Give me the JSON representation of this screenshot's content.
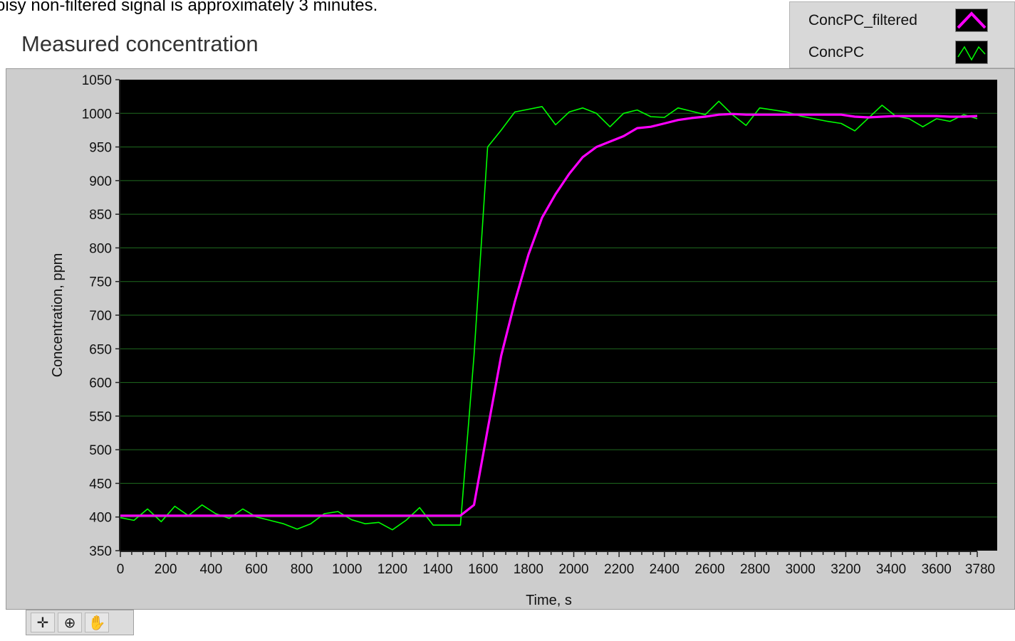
{
  "caption_text": "oisy non-filtered signal is approximately 3 minutes.",
  "toolbar": {
    "tools": [
      {
        "icon": "crosshair-icon",
        "glyph": "✛"
      },
      {
        "icon": "zoom-icon",
        "glyph": "⊕"
      },
      {
        "icon": "pan-hand-icon",
        "glyph": "✋"
      }
    ]
  },
  "colors": {
    "plot_background": "#000000",
    "grid": "#1f6b1f",
    "frame": "#cdcdcd",
    "ConcPC_filtered": "#ff00ff",
    "ConcPC": "#00ff00"
  },
  "chart_data": {
    "type": "line",
    "title": "Measured concentration",
    "xlabel": "Time, s",
    "ylabel": "Concentration, ppm",
    "xlim": [
      0,
      3780
    ],
    "ylim": [
      350,
      1050
    ],
    "x_ticks": [
      0,
      200,
      400,
      600,
      800,
      1000,
      1200,
      1400,
      1600,
      1800,
      2000,
      2200,
      2400,
      2600,
      2800,
      3000,
      3200,
      3400,
      3600,
      3780
    ],
    "y_ticks": [
      350,
      400,
      450,
      500,
      550,
      600,
      650,
      700,
      750,
      800,
      850,
      900,
      950,
      1000,
      1050
    ],
    "grid": true,
    "legend_position": "top-right",
    "series": [
      {
        "name": "ConcPC_filtered",
        "x": [
          0,
          300,
          600,
          900,
          1200,
          1500,
          1560,
          1620,
          1680,
          1740,
          1800,
          1860,
          1920,
          1980,
          2040,
          2100,
          2160,
          2220,
          2280,
          2340,
          2400,
          2460,
          2520,
          2580,
          2640,
          2700,
          2760,
          2820,
          2880,
          2940,
          3000,
          3060,
          3120,
          3180,
          3240,
          3300,
          3360,
          3420,
          3480,
          3540,
          3600,
          3660,
          3720,
          3780
        ],
        "y": [
          402,
          402,
          402,
          402,
          402,
          402,
          418,
          530,
          640,
          720,
          790,
          845,
          880,
          910,
          935,
          950,
          958,
          966,
          978,
          980,
          985,
          990,
          993,
          995,
          998,
          999,
          998,
          998,
          998,
          998,
          998,
          998,
          998,
          998,
          995,
          994,
          995,
          996,
          996,
          996,
          996,
          995,
          995,
          996
        ]
      },
      {
        "name": "ConcPC",
        "x": [
          0,
          60,
          120,
          180,
          240,
          300,
          360,
          420,
          480,
          540,
          600,
          660,
          720,
          780,
          840,
          900,
          960,
          1020,
          1080,
          1140,
          1200,
          1260,
          1320,
          1380,
          1440,
          1500,
          1560,
          1620,
          1680,
          1740,
          1800,
          1860,
          1920,
          1980,
          2040,
          2100,
          2160,
          2220,
          2280,
          2340,
          2400,
          2460,
          2520,
          2580,
          2640,
          2700,
          2760,
          2820,
          2880,
          2940,
          3000,
          3060,
          3120,
          3180,
          3240,
          3300,
          3360,
          3420,
          3480,
          3540,
          3600,
          3660,
          3720,
          3780
        ],
        "y": [
          399,
          395,
          412,
          393,
          416,
          402,
          418,
          405,
          398,
          412,
          400,
          395,
          390,
          382,
          390,
          405,
          408,
          396,
          390,
          392,
          381,
          395,
          414,
          388,
          388,
          388,
          640,
          950,
          975,
          1002,
          1006,
          1010,
          983,
          1002,
          1008,
          1000,
          980,
          1000,
          1005,
          995,
          994,
          1008,
          1003,
          998,
          1018,
          998,
          982,
          1008,
          1005,
          1002,
          996,
          992,
          988,
          985,
          974,
          993,
          1012,
          996,
          992,
          980,
          992,
          988,
          998,
          992
        ]
      }
    ]
  }
}
